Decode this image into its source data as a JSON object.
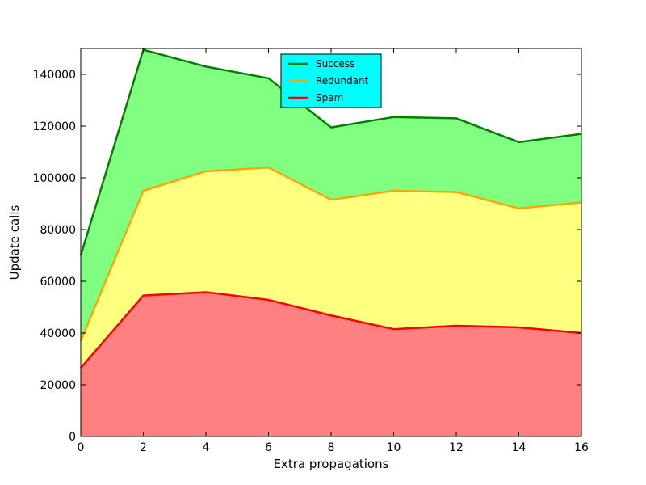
{
  "chart_data": {
    "type": "area",
    "stacked": true,
    "xlabel": "Extra propagations",
    "ylabel": "Update calls",
    "xlim": [
      0,
      16
    ],
    "ylim": [
      0,
      150000
    ],
    "x": [
      0,
      2,
      4,
      6,
      8,
      10,
      12,
      14,
      16
    ],
    "x_ticks": [
      "0",
      "2",
      "4",
      "6",
      "8",
      "10",
      "12",
      "14",
      "16"
    ],
    "y_ticks": [
      "0",
      "20000",
      "40000",
      "60000",
      "80000",
      "100000",
      "120000",
      "140000"
    ],
    "y_tick_values": [
      0,
      20000,
      40000,
      60000,
      80000,
      100000,
      120000,
      140000
    ],
    "grid": false,
    "legend_position": "upper-center",
    "legend_background": "#00ffff",
    "series_cumulative": [
      {
        "name": "Success",
        "line_color": "#008000",
        "fill_color": "#80ff80",
        "values": [
          70000,
          149500,
          143000,
          138500,
          119500,
          123500,
          123000,
          113800,
          117000
        ]
      },
      {
        "name": "Redundant",
        "line_color": "#ffa500",
        "fill_color": "#ffff80",
        "values": [
          37000,
          95000,
          102500,
          104000,
          91500,
          95000,
          94500,
          88200,
          90500
        ]
      },
      {
        "name": "Spam",
        "line_color": "#ff0000",
        "fill_color": "#ff8080",
        "values": [
          26500,
          54500,
          55800,
          52800,
          46800,
          41500,
          42800,
          42200,
          40000
        ]
      }
    ]
  }
}
